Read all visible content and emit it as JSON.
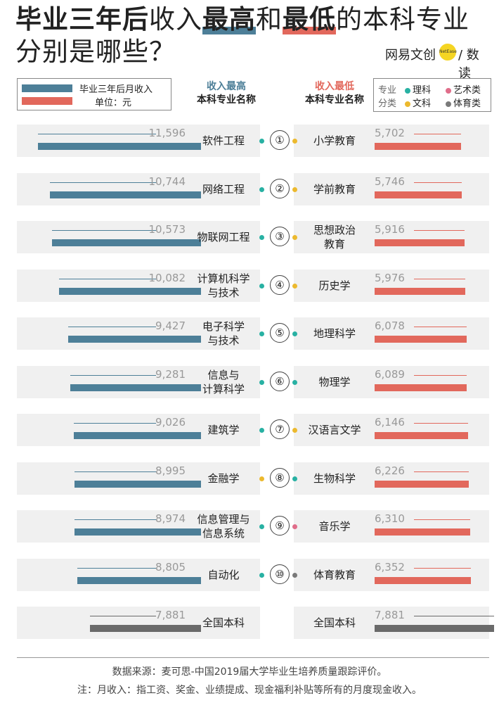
{
  "title": {
    "line1_part1": "毕业三年后",
    "line1_part2": "收入",
    "line1_part3": "最高",
    "line1_part4": "和",
    "line1_part5": "最低",
    "line1_part6": "的本科专业",
    "line2": "分别是哪些？"
  },
  "brand": {
    "left": "网易文创",
    "dot": "NetEase",
    "right": "/ 数读"
  },
  "legend": {
    "income_label": "毕业三年后月收入",
    "unit_label": "单位：元"
  },
  "headers": {
    "left_line1": "收入最高",
    "left_line2": "本科专业名称",
    "right_line1": "收入最低",
    "right_line2": "本科专业名称"
  },
  "categories": {
    "title1": "专业",
    "title2": "分类",
    "items": [
      {
        "label": "理科",
        "color": "#28b1a3"
      },
      {
        "label": "艺术类",
        "color": "#e06d8a"
      },
      {
        "label": "文科",
        "color": "#ecb92e"
      },
      {
        "label": "体育类",
        "color": "#7a7a7a"
      }
    ]
  },
  "colors": {
    "high": "#4d7f98",
    "low": "#e2685c",
    "total": "#6a6a6a"
  },
  "chart_data": {
    "type": "bar",
    "title": "毕业三年后收入最高和最低的本科专业分别是哪些？",
    "rows": [
      {
        "rank": "①",
        "high_major": "软件工程",
        "high_value": 11596,
        "high_label": "11,596",
        "high_dot": "#28b1a3",
        "low_major": "小学教育",
        "low_value": 5702,
        "low_label": "5,702",
        "low_dot": "#ecb92e"
      },
      {
        "rank": "②",
        "high_major": "网络工程",
        "high_value": 10744,
        "high_label": "10,744",
        "high_dot": "#28b1a3",
        "low_major": "学前教育",
        "low_value": 5746,
        "low_label": "5,746",
        "low_dot": "#ecb92e"
      },
      {
        "rank": "③",
        "high_major": "物联网工程",
        "high_value": 10573,
        "high_label": "10,573",
        "high_dot": "#28b1a3",
        "low_major": "思想政治教育",
        "low_value": 5916,
        "low_label": "5,916",
        "low_dot": "#ecb92e"
      },
      {
        "rank": "④",
        "high_major": "计算机科学与技术",
        "high_value": 10082,
        "high_label": "10,082",
        "high_dot": "#28b1a3",
        "low_major": "历史学",
        "low_value": 5976,
        "low_label": "5,976",
        "low_dot": "#ecb92e"
      },
      {
        "rank": "⑤",
        "high_major": "电子科学与技术",
        "high_value": 9427,
        "high_label": "9,427",
        "high_dot": "#28b1a3",
        "low_major": "地理科学",
        "low_value": 6078,
        "low_label": "6,078",
        "low_dot": "#28b1a3"
      },
      {
        "rank": "⑥",
        "high_major": "信息与计算科学",
        "high_value": 9281,
        "high_label": "9,281",
        "high_dot": "#28b1a3",
        "low_major": "物理学",
        "low_value": 6089,
        "low_label": "6,089",
        "low_dot": "#28b1a3"
      },
      {
        "rank": "⑦",
        "high_major": "建筑学",
        "high_value": 9026,
        "high_label": "9,026",
        "high_dot": "#28b1a3",
        "low_major": "汉语言文学",
        "low_value": 6146,
        "low_label": "6,146",
        "low_dot": "#ecb92e"
      },
      {
        "rank": "⑧",
        "high_major": "金融学",
        "high_value": 8995,
        "high_label": "8,995",
        "high_dot": "#ecb92e",
        "low_major": "生物科学",
        "low_value": 6226,
        "low_label": "6,226",
        "low_dot": "#28b1a3"
      },
      {
        "rank": "⑨",
        "high_major": "信息管理与信息系统",
        "high_value": 8974,
        "high_label": "8,974",
        "high_dot": "#28b1a3",
        "low_major": "音乐学",
        "low_value": 6310,
        "low_label": "6,310",
        "low_dot": "#e06d8a"
      },
      {
        "rank": "⑩",
        "high_major": "自动化",
        "high_value": 8805,
        "high_label": "8,805",
        "high_dot": "#28b1a3",
        "low_major": "体育教育",
        "low_value": 6352,
        "low_label": "6,352",
        "low_dot": "#7a7a7a"
      }
    ],
    "total": {
      "major": "全国本科",
      "value": 7881,
      "label": "7,881"
    }
  },
  "footer": {
    "source": "数据来源：麦可思-中国2019届大学毕业生培养质量跟踪评价。",
    "note": "注：月收入：指工资、奖金、业绩提成、现金福利补贴等所有的月度现金收入。"
  }
}
